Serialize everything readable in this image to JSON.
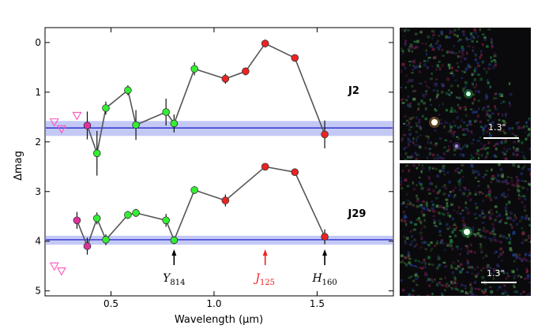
{
  "chart_data": {
    "type": "line",
    "xlabel": "Wavelength (μm)",
    "ylabel": "Δmag",
    "xlim": [
      0.18,
      1.87
    ],
    "ylim": [
      5.1,
      -0.3
    ],
    "xticks": [
      "0.5",
      "1.0",
      "1.5"
    ],
    "yticks": [
      "0",
      "1",
      "2",
      "3",
      "4",
      "5"
    ],
    "series": [
      {
        "name": "J2",
        "baseline": 1.72,
        "band": [
          1.58,
          1.88
        ],
        "points": [
          {
            "x": 0.385,
            "y": 1.67,
            "err": 0.28,
            "color": "#e030a0"
          },
          {
            "x": 0.432,
            "y": 2.23,
            "err": 0.45,
            "color": "#33ee33"
          },
          {
            "x": 0.475,
            "y": 1.32,
            "err": 0.13,
            "color": "#33ee33"
          },
          {
            "x": 0.582,
            "y": 0.96,
            "err": 0.1,
            "color": "#33ee33"
          },
          {
            "x": 0.621,
            "y": 1.66,
            "err": 0.3,
            "color": "#33ee33"
          },
          {
            "x": 0.767,
            "y": 1.4,
            "err": 0.27,
            "color": "#33ee33"
          },
          {
            "x": 0.806,
            "y": 1.63,
            "err": 0.18,
            "color": "#33ee33"
          },
          {
            "x": 0.905,
            "y": 0.53,
            "err": 0.13,
            "color": "#33ee33"
          },
          {
            "x": 1.055,
            "y": 0.73,
            "err": 0.1,
            "color": "#ee2222"
          },
          {
            "x": 1.153,
            "y": 0.58,
            "err": 0.08,
            "color": "#ee2222"
          },
          {
            "x": 1.248,
            "y": 0.02,
            "err": 0.08,
            "color": "#ee2222"
          },
          {
            "x": 1.392,
            "y": 0.31,
            "err": 0.05,
            "color": "#ee2222"
          },
          {
            "x": 1.537,
            "y": 1.85,
            "err": 0.28,
            "color": "#ee2222"
          }
        ],
        "upper_limits": [
          {
            "x": 0.225,
            "y": 1.6
          },
          {
            "x": 0.26,
            "y": 1.74
          },
          {
            "x": 0.335,
            "y": 1.47
          }
        ],
        "label": "J2"
      },
      {
        "name": "J29",
        "baseline": 3.97,
        "band": [
          3.89,
          4.07
        ],
        "points": [
          {
            "x": 0.335,
            "y": 3.58,
            "err": 0.17,
            "color": "#e030a0"
          },
          {
            "x": 0.385,
            "y": 4.1,
            "err": 0.17,
            "color": "#e030a0"
          },
          {
            "x": 0.432,
            "y": 3.54,
            "err": 0.12,
            "color": "#33ee33"
          },
          {
            "x": 0.475,
            "y": 3.97,
            "err": 0.11,
            "color": "#33ee33"
          },
          {
            "x": 0.582,
            "y": 3.47,
            "err": 0.08,
            "color": "#33ee33"
          },
          {
            "x": 0.621,
            "y": 3.43,
            "err": 0.08,
            "color": "#33ee33"
          },
          {
            "x": 0.767,
            "y": 3.58,
            "err": 0.13,
            "color": "#33ee33"
          },
          {
            "x": 0.806,
            "y": 3.98,
            "err": 0.08,
            "color": "#33ee33"
          },
          {
            "x": 0.905,
            "y": 2.97,
            "err": 0.08,
            "color": "#33ee33"
          },
          {
            "x": 1.055,
            "y": 3.18,
            "err": 0.12,
            "color": "#ee2222"
          },
          {
            "x": 1.248,
            "y": 2.5,
            "err": 0.04,
            "color": "#ee2222"
          },
          {
            "x": 1.392,
            "y": 2.61,
            "err": 0.04,
            "color": "#ee2222"
          },
          {
            "x": 1.537,
            "y": 3.91,
            "err": 0.15,
            "color": "#ee2222"
          }
        ],
        "upper_limits": [
          {
            "x": 0.225,
            "y": 4.5
          },
          {
            "x": 0.26,
            "y": 4.6
          }
        ],
        "label": "J29"
      }
    ],
    "filter_arrows": [
      {
        "x": 0.806,
        "label": "Y",
        "sub": "814",
        "color": "#000000"
      },
      {
        "x": 1.248,
        "label": "J",
        "sub": "125",
        "color": "#ee2222"
      },
      {
        "x": 1.537,
        "label": "H",
        "sub": "160",
        "color": "#000000"
      }
    ]
  },
  "thumbnails": [
    {
      "scale_label": "1.3\""
    },
    {
      "scale_label": "1.3\""
    }
  ]
}
